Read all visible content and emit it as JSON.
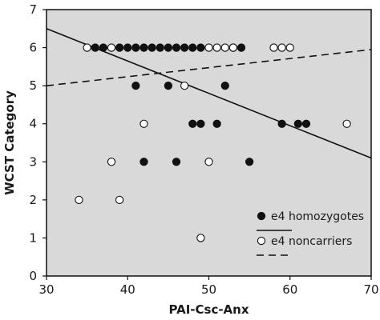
{
  "chart_data": {
    "type": "scatter",
    "xlabel": "PAI-Csc-Anx",
    "ylabel": "WCST Category",
    "xlim": [
      30,
      70
    ],
    "ylim": [
      0,
      7
    ],
    "x_ticks": [
      30,
      40,
      50,
      60,
      70
    ],
    "y_ticks": [
      0,
      1,
      2,
      3,
      4,
      5,
      6,
      7
    ],
    "grid": false,
    "background": "#d9d9d9",
    "legend_position": "bottom-right",
    "series": [
      {
        "name": "e4 homozygotes",
        "marker": "filled-circle",
        "line_style": "solid",
        "color": "#111111",
        "points": [
          [
            36,
            6
          ],
          [
            37,
            6
          ],
          [
            39,
            6
          ],
          [
            40,
            6
          ],
          [
            41,
            6
          ],
          [
            42,
            6
          ],
          [
            43,
            6
          ],
          [
            44,
            6
          ],
          [
            45,
            6
          ],
          [
            46,
            6
          ],
          [
            47,
            6
          ],
          [
            48,
            6
          ],
          [
            49,
            6
          ],
          [
            53,
            6
          ],
          [
            54,
            6
          ],
          [
            41,
            5
          ],
          [
            45,
            5
          ],
          [
            52,
            5
          ],
          [
            48,
            4
          ],
          [
            49,
            4
          ],
          [
            51,
            4
          ],
          [
            59,
            4
          ],
          [
            61,
            4
          ],
          [
            62,
            4
          ],
          [
            42,
            3
          ],
          [
            46,
            3
          ],
          [
            55,
            3
          ]
        ],
        "trend": {
          "x": [
            30,
            70
          ],
          "y": [
            6.5,
            3.1
          ]
        }
      },
      {
        "name": "e4 noncarriers",
        "marker": "open-circle",
        "line_style": "dashed",
        "color": "#ffffff",
        "points": [
          [
            35,
            6
          ],
          [
            38,
            6
          ],
          [
            50,
            6
          ],
          [
            51,
            6
          ],
          [
            52,
            6
          ],
          [
            53,
            6
          ],
          [
            58,
            6
          ],
          [
            59,
            6
          ],
          [
            60,
            6
          ],
          [
            47,
            5
          ],
          [
            42,
            4
          ],
          [
            67,
            4
          ],
          [
            38,
            3
          ],
          [
            50,
            3
          ],
          [
            34,
            2
          ],
          [
            39,
            2
          ],
          [
            49,
            1
          ]
        ],
        "trend": {
          "x": [
            30,
            70
          ],
          "y": [
            5.0,
            5.95
          ]
        }
      }
    ]
  }
}
